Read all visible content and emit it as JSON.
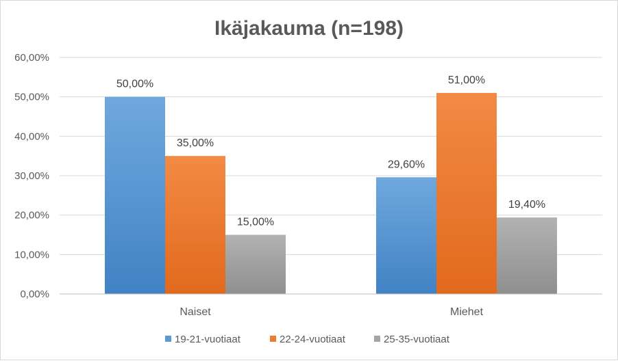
{
  "chart_data": {
    "type": "bar",
    "title": "Ikäjakauma (n=198)",
    "xlabel": "",
    "ylabel": "",
    "categories": [
      "Naiset",
      "Miehet"
    ],
    "ylim": [
      0,
      60
    ],
    "yticks": [
      0,
      10,
      20,
      30,
      40,
      50,
      60
    ],
    "ytick_labels": [
      "0,00%",
      "10,00%",
      "20,00%",
      "30,00%",
      "40,00%",
      "50,00%",
      "60,00%"
    ],
    "grid": true,
    "legend_position": "bottom",
    "series": [
      {
        "name": "19-21-vuotiaat",
        "values": [
          50.0,
          29.6
        ],
        "labels": [
          "50,00%",
          "29,60%"
        ],
        "color": "#5b9bd5",
        "color_light": "#6fa8de",
        "color_dark": "#4182c4"
      },
      {
        "name": "22-24-vuotiaat",
        "values": [
          35.0,
          51.0
        ],
        "labels": [
          "35,00%",
          "51,00%"
        ],
        "color": "#ed7d31",
        "color_light": "#f28a45",
        "color_dark": "#e2691c"
      },
      {
        "name": "25-35-vuotiaat",
        "values": [
          15.0,
          19.4
        ],
        "labels": [
          "15,00%",
          "19,40%"
        ],
        "color": "#a5a5a5",
        "color_light": "#b2b2b2",
        "color_dark": "#8f8f8f"
      }
    ]
  }
}
